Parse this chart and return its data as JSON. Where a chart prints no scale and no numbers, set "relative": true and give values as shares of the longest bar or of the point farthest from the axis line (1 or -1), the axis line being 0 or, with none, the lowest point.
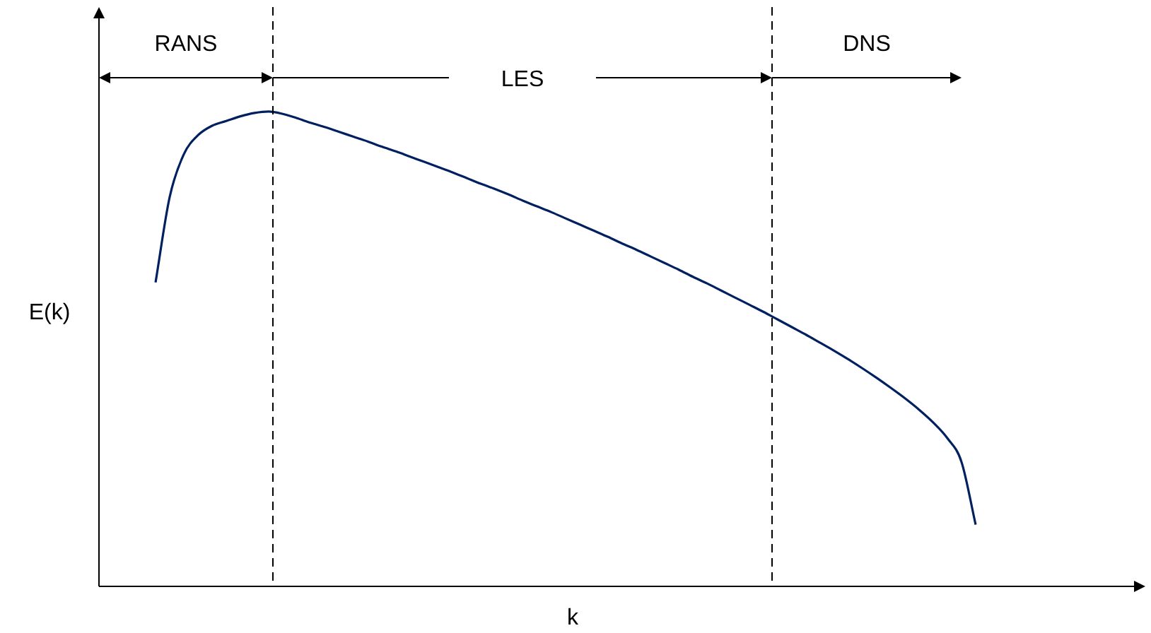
{
  "chart_data": {
    "type": "line",
    "relative": true,
    "xlabel": "k",
    "ylabel": "E(k)",
    "color": "#002060",
    "grid": false,
    "legend": false,
    "marker": "none",
    "line_style": "solid",
    "categories": [
      null,
      null,
      null,
      null,
      null,
      null,
      null,
      null,
      null,
      null,
      null,
      null,
      null,
      null,
      null,
      null,
      null,
      null,
      null,
      null,
      null,
      null,
      null,
      null,
      null,
      null,
      null,
      null,
      null,
      null,
      null,
      null,
      null,
      null,
      null,
      null,
      null,
      null,
      null,
      null,
      null,
      null,
      null,
      null,
      null,
      null,
      null,
      null,
      null,
      null,
      null,
      null,
      null,
      null,
      null,
      null,
      null,
      null,
      null,
      null,
      null,
      null,
      null,
      null,
      null,
      null,
      null,
      null,
      null,
      null,
      null,
      null,
      null,
      null,
      null
    ],
    "values": [
      null,
      null,
      null,
      null,
      0.64,
      0.82,
      0.91,
      0.95,
      0.97,
      0.98,
      0.99,
      0.997,
      1,
      0.995,
      0.986,
      0.976,
      0.967,
      0.957,
      0.947,
      0.937,
      0.926,
      0.916,
      0.905,
      0.894,
      0.883,
      0.872,
      0.86,
      0.848,
      0.837,
      0.825,
      0.812,
      0.8,
      0.788,
      0.775,
      0.762,
      0.749,
      0.736,
      0.722,
      0.709,
      0.695,
      0.681,
      0.667,
      0.652,
      0.638,
      0.623,
      0.608,
      0.593,
      0.578,
      0.562,
      0.546,
      0.53,
      0.513,
      0.496,
      0.478,
      0.459,
      0.439,
      0.418,
      0.396,
      0.372,
      0.345,
      0.312,
      0.262,
      0.13,
      null,
      null,
      null,
      null,
      null,
      null,
      null,
      null,
      null,
      null,
      null,
      null
    ],
    "annotations": [
      "RANS",
      "LES",
      "DNS"
    ]
  }
}
